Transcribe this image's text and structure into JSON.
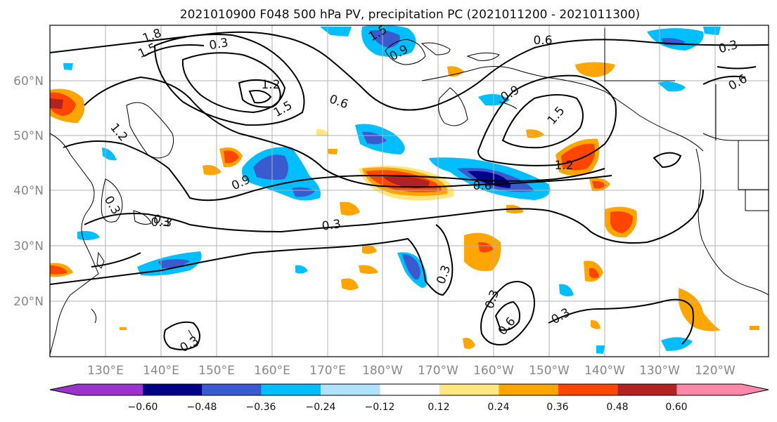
{
  "title": "2021010900 F048 500 hPa PV, precipitation PC (2021011200 - 2021011300)",
  "map": {
    "lon_labels": [
      "130°E",
      "140°E",
      "150°E",
      "160°E",
      "170°E",
      "180°W",
      "170°W",
      "160°W",
      "150°W",
      "140°W",
      "130°W",
      "120°W"
    ],
    "lat_labels": [
      "60°N",
      "50°N",
      "40°N",
      "30°N",
      "20°N"
    ],
    "contour_labels": [
      "1.8",
      "1.5",
      "0.3",
      "1.2",
      "1.5",
      "0.6",
      "1.2",
      "0.9",
      "0.3",
      "0.3",
      "0.3",
      "0.6",
      "1.5",
      "1.2",
      "0.9",
      "0.6",
      "0.3",
      "0.3",
      "0.3",
      "0.6",
      "0.3",
      "0.3",
      "0.6",
      "1.5",
      "0.9",
      "0.3"
    ]
  },
  "colorbar": {
    "ticks": [
      "−0.60",
      "−0.48",
      "−0.36",
      "−0.24",
      "−0.12",
      "0.12",
      "0.24",
      "0.36",
      "0.48",
      "0.60"
    ],
    "colors": {
      "below": "#9933cc",
      "neg060_048": "#00008b",
      "neg048_036": "#3a5bd0",
      "neg036_024": "#00bfff",
      "neg024_012": "#b0e2ff",
      "neutral": "#ffffff",
      "pos012_024": "#ffe680",
      "pos024_036": "#ffa500",
      "pos036_048": "#ff4500",
      "pos048_060": "#b22222",
      "above": "#ff88aa"
    }
  }
}
